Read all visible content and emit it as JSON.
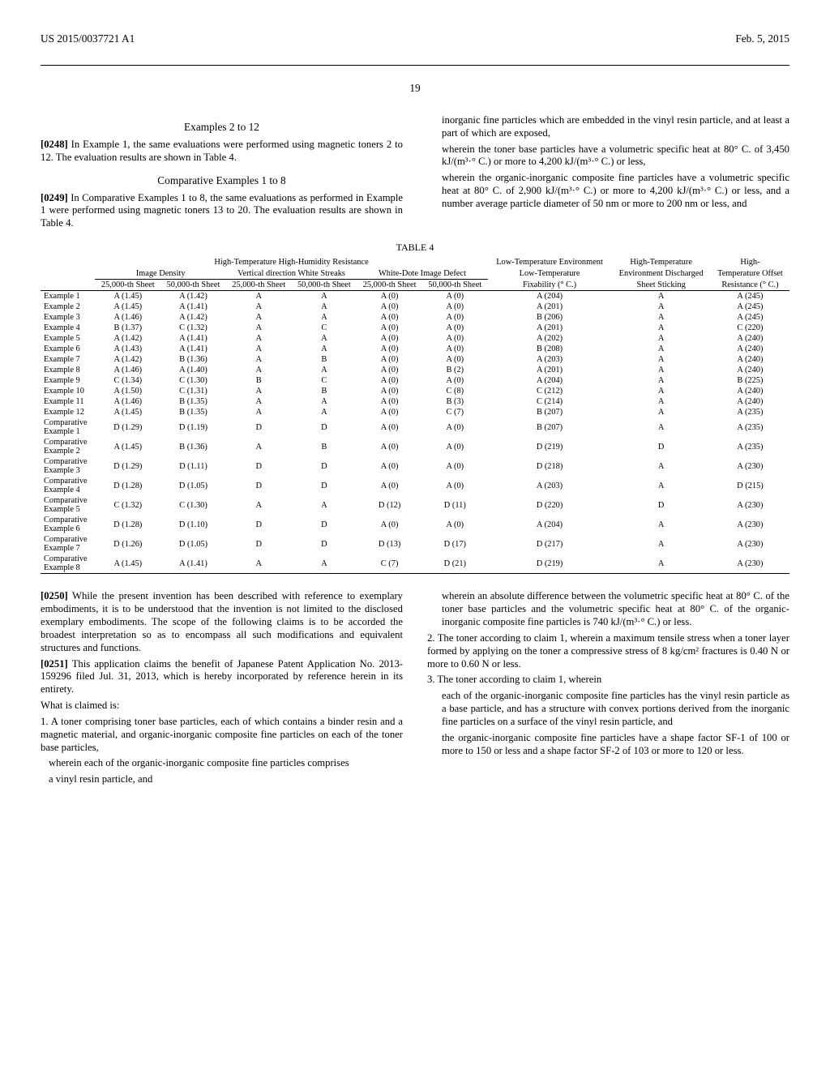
{
  "header": {
    "pubNumber": "US 2015/0037721 A1",
    "pubDate": "Feb. 5, 2015"
  },
  "pageNumber": "19",
  "left": {
    "examplesTitle": "Examples 2 to 12",
    "p0248_num": "[0248]",
    "p0248": "In Example 1, the same evaluations were performed using magnetic toners 2 to 12. The evaluation results are shown in Table 4.",
    "compTitle": "Comparative Examples 1 to 8",
    "p0249_num": "[0249]",
    "p0249": "In Comparative Examples 1 to 8, the same evaluations as performed in Example 1 were performed using magnetic toners 13 to 20. The evaluation results are shown in Table 4."
  },
  "right_top": {
    "line1": "inorganic fine particles which are embedded in the vinyl resin particle, and at least a part of which are exposed,",
    "line2": "wherein the toner base particles have a volumetric specific heat at 80° C. of 3,450 kJ/(m³·° C.) or more to 4,200 kJ/(m³·° C.) or less,",
    "line3": "wherein the organic-inorganic composite fine particles have a volumetric specific heat at 80° C. of 2,900 kJ/(m³·° C.) or more to 4,200 kJ/(m³·° C.) or less, and a number average particle diameter of 50 nm or more to 200 nm or less, and"
  },
  "tableCaption": "TABLE 4",
  "table": {
    "groupHeaders": {
      "hthh": "High-Temperature High-Humidity Resistance",
      "lte": "Low-Temperature Environment",
      "hte": "High-Temperature",
      "ht": "High-"
    },
    "subHeaders": {
      "imgDensity": "Image Density",
      "vdws": "Vertical direction White Streaks",
      "wdid": "White-Dote Image Defect",
      "lowTemp": "Low-Temperature",
      "envDisch": "Environment Discharged",
      "tempOffset": "Temperature Offset"
    },
    "leafHeaders": {
      "s25": "25,000-th Sheet",
      "s50": "50,000-th Sheet",
      "fix": "Fixability (° C.)",
      "stick": "Sheet Sticking",
      "res": "Resistance (° C.)"
    },
    "rows": [
      {
        "label": "Example 1",
        "d": [
          "A (1.45)",
          "A (1.42)",
          "A",
          "A",
          "A (0)",
          "A (0)",
          "A (204)",
          "A",
          "A (245)"
        ]
      },
      {
        "label": "Example 2",
        "d": [
          "A (1.45)",
          "A (1.41)",
          "A",
          "A",
          "A (0)",
          "A (0)",
          "A (201)",
          "A",
          "A (245)"
        ]
      },
      {
        "label": "Example 3",
        "d": [
          "A (1.46)",
          "A (1.42)",
          "A",
          "A",
          "A (0)",
          "A (0)",
          "B (206)",
          "A",
          "A (245)"
        ]
      },
      {
        "label": "Example 4",
        "d": [
          "B (1.37)",
          "C (1.32)",
          "A",
          "C",
          "A (0)",
          "A (0)",
          "A (201)",
          "A",
          "C (220)"
        ]
      },
      {
        "label": "Example 5",
        "d": [
          "A (1.42)",
          "A (1.41)",
          "A",
          "A",
          "A (0)",
          "A (0)",
          "A (202)",
          "A",
          "A (240)"
        ]
      },
      {
        "label": "Example 6",
        "d": [
          "A (1.43)",
          "A (1.41)",
          "A",
          "A",
          "A (0)",
          "A (0)",
          "B (208)",
          "A",
          "A (240)"
        ]
      },
      {
        "label": "Example 7",
        "d": [
          "A (1.42)",
          "B (1.36)",
          "A",
          "B",
          "A (0)",
          "A (0)",
          "A (203)",
          "A",
          "A (240)"
        ]
      },
      {
        "label": "Example 8",
        "d": [
          "A (1.46)",
          "A (1.40)",
          "A",
          "A",
          "A (0)",
          "B (2)",
          "A (201)",
          "A",
          "A (240)"
        ]
      },
      {
        "label": "Example 9",
        "d": [
          "C (1.34)",
          "C (1.30)",
          "B",
          "C",
          "A (0)",
          "A (0)",
          "A (204)",
          "A",
          "B (225)"
        ]
      },
      {
        "label": "Example 10",
        "d": [
          "A (1.50)",
          "C (1.31)",
          "A",
          "B",
          "A (0)",
          "C (8)",
          "C (212)",
          "A",
          "A (240)"
        ]
      },
      {
        "label": "Example 11",
        "d": [
          "A (1.46)",
          "B (1.35)",
          "A",
          "A",
          "A (0)",
          "B (3)",
          "C (214)",
          "A",
          "A (240)"
        ]
      },
      {
        "label": "Example 12",
        "d": [
          "A (1.45)",
          "B (1.35)",
          "A",
          "A",
          "A (0)",
          "C (7)",
          "B (207)",
          "A",
          "A (235)"
        ]
      },
      {
        "label": "Comparative Example 1",
        "d": [
          "D (1.29)",
          "D (1.19)",
          "D",
          "D",
          "A (0)",
          "A (0)",
          "B (207)",
          "A",
          "A (235)"
        ]
      },
      {
        "label": "Comparative Example 2",
        "d": [
          "A (1.45)",
          "B (1.36)",
          "A",
          "B",
          "A (0)",
          "A (0)",
          "D (219)",
          "D",
          "A (235)"
        ]
      },
      {
        "label": "Comparative Example 3",
        "d": [
          "D (1.29)",
          "D (1.11)",
          "D",
          "D",
          "A (0)",
          "A (0)",
          "D (218)",
          "A",
          "A (230)"
        ]
      },
      {
        "label": "Comparative Example 4",
        "d": [
          "D (1.28)",
          "D (1.05)",
          "D",
          "D",
          "A (0)",
          "A (0)",
          "A (203)",
          "A",
          "D (215)"
        ]
      },
      {
        "label": "Comparative Example 5",
        "d": [
          "C (1.32)",
          "C (1.30)",
          "A",
          "A",
          "D (12)",
          "D (11)",
          "D (220)",
          "D",
          "A (230)"
        ]
      },
      {
        "label": "Comparative Example 6",
        "d": [
          "D (1.28)",
          "D (1.10)",
          "D",
          "D",
          "A (0)",
          "A (0)",
          "A (204)",
          "A",
          "A (230)"
        ]
      },
      {
        "label": "Comparative Example 7",
        "d": [
          "D (1.26)",
          "D (1.05)",
          "D",
          "D",
          "D (13)",
          "D (17)",
          "D (217)",
          "A",
          "A (230)"
        ]
      },
      {
        "label": "Comparative Example 8",
        "d": [
          "A (1.45)",
          "A (1.41)",
          "A",
          "A",
          "C (7)",
          "D (21)",
          "D (219)",
          "A",
          "A (230)"
        ]
      }
    ]
  },
  "bottom_left": {
    "p0250_num": "[0250]",
    "p0250": "While the present invention has been described with reference to exemplary embodiments, it is to be understood that the invention is not limited to the disclosed exemplary embodiments. The scope of the following claims is to be accorded the broadest interpretation so as to encompass all such modifications and equivalent structures and functions.",
    "p0251_num": "[0251]",
    "p0251": "This application claims the benefit of Japanese Patent Application No. 2013-159296 filed Jul. 31, 2013, which is hereby incorporated by reference herein in its entirety.",
    "whatIsClaimed": "What is claimed is:",
    "claim1a": "1. A toner comprising toner base particles, each of which contains a binder resin and a magnetic material, and organic-inorganic composite fine particles on each of the toner base particles,",
    "claim1b": "wherein each of the organic-inorganic composite fine particles comprises",
    "claim1c": "a vinyl resin particle, and"
  },
  "bottom_right": {
    "r1": "wherein an absolute difference between the volumetric specific heat at 80° C. of the toner base particles and the volumetric specific heat at 80° C. of the organic-inorganic composite fine particles is 740 kJ/(m³·° C.) or less.",
    "claim2": "2. The toner according to claim 1, wherein a maximum tensile stress when a toner layer formed by applying on the toner a compressive stress of 8 kg/cm² fractures is 0.40 N or more to 0.60 N or less.",
    "claim3a": "3. The toner according to claim 1, wherein",
    "claim3b": "each of the organic-inorganic composite fine particles has the vinyl resin particle as a base particle, and has a structure with convex portions derived from the inorganic fine particles on a surface of the vinyl resin particle, and",
    "claim3c": "the organic-inorganic composite fine particles have a shape factor SF-1 of 100 or more to 150 or less and a shape factor SF-2 of 103 or more to 120 or less."
  }
}
